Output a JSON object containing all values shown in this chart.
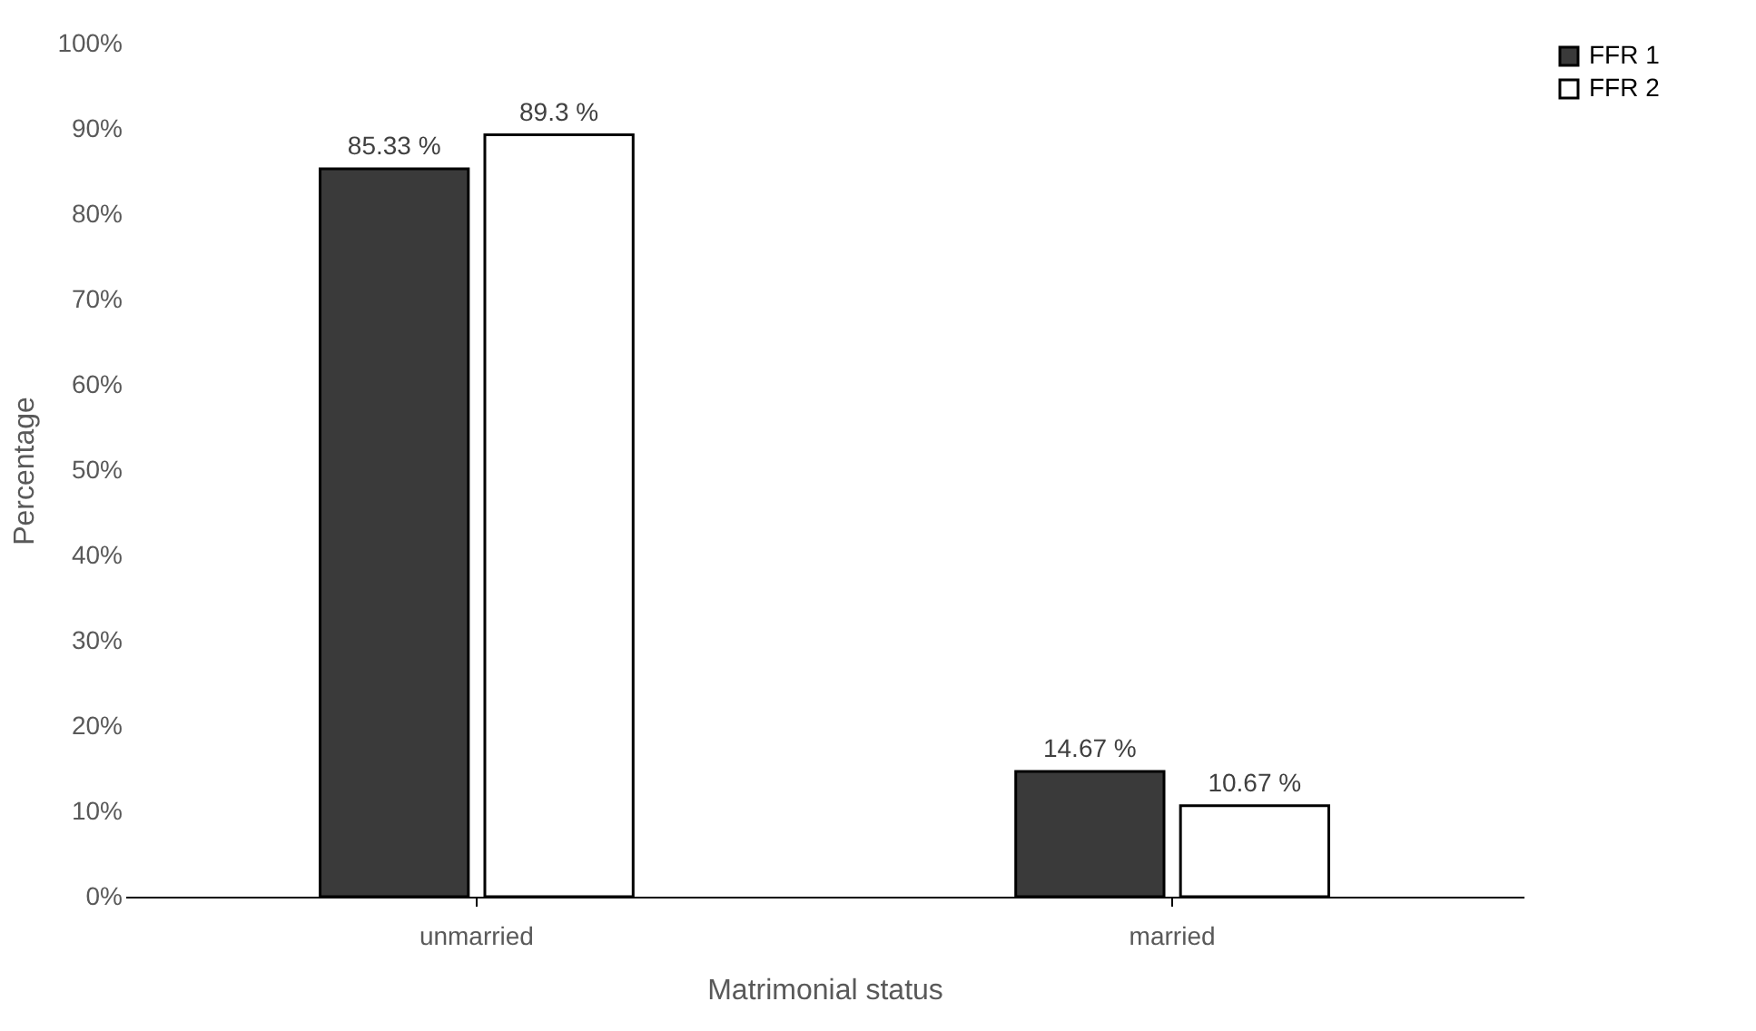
{
  "chart_data": {
    "type": "bar",
    "xlabel": "Matrimonial status",
    "ylabel": "Percentage",
    "categories": [
      "unmarried",
      "married"
    ],
    "series": [
      {
        "name": "FFR 1",
        "color": "#3a3a3a",
        "values": [
          85.33,
          14.67
        ],
        "value_labels": [
          "85.33 %",
          "14.67 %"
        ]
      },
      {
        "name": "FFR 2",
        "color": "#ffffff",
        "values": [
          89.3,
          10.67
        ],
        "value_labels": [
          "89.3 %",
          "10.67 %"
        ]
      }
    ],
    "ylim": [
      0,
      100
    ],
    "yticks": [
      {
        "value": 0,
        "label": "0%"
      },
      {
        "value": 10,
        "label": "10%"
      },
      {
        "value": 20,
        "label": "20%"
      },
      {
        "value": 30,
        "label": "30%"
      },
      {
        "value": 40,
        "label": "40%"
      },
      {
        "value": 50,
        "label": "50%"
      },
      {
        "value": 60,
        "label": "60%"
      },
      {
        "value": 70,
        "label": "70%"
      },
      {
        "value": 80,
        "label": "80%"
      },
      {
        "value": 90,
        "label": "90%"
      },
      {
        "value": 100,
        "label": "100%"
      }
    ],
    "grid": false,
    "legend": "right"
  }
}
